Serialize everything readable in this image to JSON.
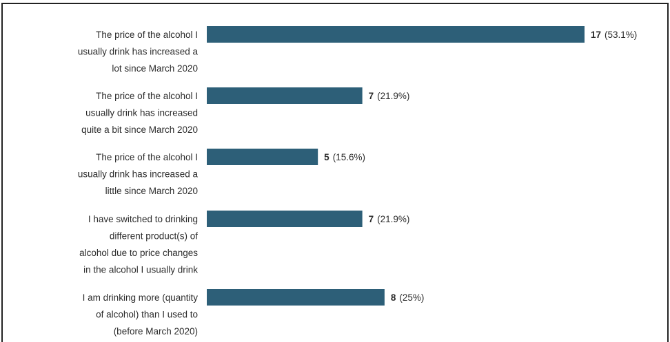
{
  "chart_data": {
    "type": "bar",
    "orientation": "horizontal",
    "categories": [
      [
        "The price of the alcohol I",
        "usually drink has increased a",
        "lot since March 2020"
      ],
      [
        "The price of the alcohol I",
        "usually drink has increased",
        "quite a bit since March 2020"
      ],
      [
        "The price of the alcohol I",
        "usually drink has increased a",
        "little since March 2020"
      ],
      [
        "I have switched to drinking",
        "different product(s) of",
        "alcohol due to price changes",
        "in the alcohol I usually drink"
      ],
      [
        "I am drinking more (quantity",
        "of alcohol) than I used to",
        "(before March 2020)"
      ]
    ],
    "values": [
      17,
      7,
      5,
      7,
      8
    ],
    "percent_labels": [
      "(53.1%)",
      "(21.9%)",
      "(15.6%)",
      "(21.9%)",
      "(25%)"
    ],
    "bar_color": "#2d5f78",
    "xlim": [
      0,
      17
    ]
  }
}
